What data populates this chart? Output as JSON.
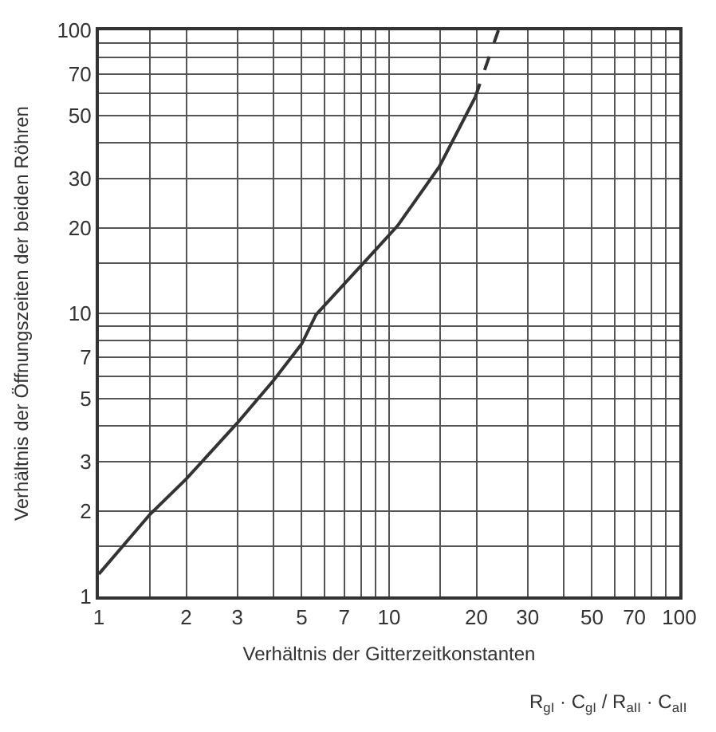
{
  "chart_data": {
    "type": "line",
    "xlabel": "Verhältnis der Gitterzeitkonstanten",
    "ylabel": "Verhältnis der Öffnungszeiten der beiden Röhren",
    "annotations": [
      "R$_{gI}$ · C$_{gI}$ / R$_{aII}$ · C$_{aII}$"
    ],
    "log": "xy",
    "grid": true,
    "marker": "none",
    "xlim": [
      1,
      100
    ],
    "ylim": [
      1,
      100
    ],
    "xticks": [
      1,
      {
        "value": 1.5,
        "label": null
      },
      2,
      3,
      {
        "value": 4,
        "label": null
      },
      5,
      {
        "value": 6,
        "label": null
      },
      7,
      {
        "value": 8,
        "label": null
      },
      {
        "value": 9,
        "label": null
      },
      10,
      {
        "value": 15,
        "label": null
      },
      20,
      30,
      {
        "value": 40,
        "label": null
      },
      50,
      {
        "value": 60,
        "label": null
      },
      70,
      {
        "value": 80,
        "label": null
      },
      {
        "value": 90,
        "label": null
      },
      100
    ],
    "yticks": [
      1,
      {
        "value": 1.5,
        "label": null
      },
      2,
      3,
      {
        "value": 4,
        "label": null
      },
      5,
      {
        "value": 6,
        "label": null
      },
      7,
      {
        "value": 8,
        "label": null
      },
      {
        "value": 9,
        "label": null
      },
      10,
      {
        "value": 15,
        "label": null
      },
      20,
      30,
      {
        "value": 40,
        "label": null
      },
      50,
      {
        "value": 60,
        "label": null
      },
      70,
      {
        "value": 80,
        "label": null
      },
      {
        "value": 90,
        "label": null
      },
      100
    ],
    "series": [
      {
        "color": "#333333",
        "line_style": "solid",
        "x": [
          1,
          1.5,
          2,
          3,
          4,
          5,
          5.6,
          9.1,
          10.7,
          14.9,
          19.8
        ],
        "values": [
          1.2,
          1.95,
          2.6,
          4.1,
          5.8,
          7.8,
          9.9,
          17,
          20.4,
          33,
          58
        ]
      },
      {
        "color": "#333333",
        "line_style": "dashed",
        "x": [
          19.8,
          23.8
        ],
        "values": [
          58,
          100
        ]
      }
    ]
  }
}
